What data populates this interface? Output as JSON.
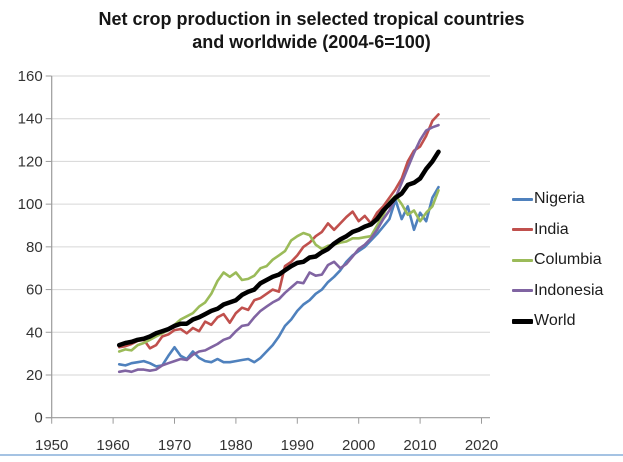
{
  "title": {
    "line1": "Net crop production in selected tropical countries",
    "line2": "and worldwide (2004-6=100)"
  },
  "colors": {
    "background": "#ffffff",
    "title_text": "#161616",
    "axis": "#9b9b9b",
    "gridline": "#d6d6d6",
    "tick_label": "#333333",
    "legend_text": "#1c1c1c",
    "bottom_rule": "#a5c3e3",
    "nigeria": "#4f81bd",
    "india": "#c0504d",
    "columbia": "#9bbb59",
    "indonesia": "#8064a2",
    "world": "#000000"
  },
  "chart_data": {
    "type": "line",
    "title": "Net crop production in selected tropical countries and worldwide (2004-6=100)",
    "xlabel": "",
    "ylabel": "",
    "xlim": [
      1950,
      2021.5
    ],
    "ylim": [
      0,
      160
    ],
    "grid": "horizontal",
    "legend_position": "right",
    "x_ticks": [
      1950,
      1960,
      1970,
      1980,
      1990,
      2000,
      2010,
      2020
    ],
    "y_ticks": [
      0,
      20,
      40,
      60,
      80,
      100,
      120,
      140,
      160
    ],
    "years": [
      1961,
      1962,
      1963,
      1964,
      1965,
      1966,
      1967,
      1968,
      1969,
      1970,
      1971,
      1972,
      1973,
      1974,
      1975,
      1976,
      1977,
      1978,
      1979,
      1980,
      1981,
      1982,
      1983,
      1984,
      1985,
      1986,
      1987,
      1988,
      1989,
      1990,
      1991,
      1992,
      1993,
      1994,
      1995,
      1996,
      1997,
      1998,
      1999,
      2000,
      2001,
      2002,
      2003,
      2004,
      2005,
      2006,
      2007,
      2008,
      2009,
      2010,
      2011,
      2012,
      2013
    ],
    "series": [
      {
        "name": "Nigeria",
        "color": "#4f81bd",
        "width": 2.6,
        "values": [
          25,
          24.5,
          25.5,
          26,
          26.5,
          25.5,
          24,
          24.5,
          29,
          33,
          29,
          27.5,
          31,
          28,
          26.5,
          26,
          27.5,
          26,
          26,
          26.5,
          27,
          27.5,
          26,
          28,
          31,
          34,
          38,
          43,
          46,
          50,
          53,
          55,
          58,
          60,
          63.5,
          66,
          69,
          73,
          76,
          78,
          80,
          83,
          86,
          89.5,
          93,
          102,
          93,
          99,
          88,
          96,
          92,
          103,
          108
        ]
      },
      {
        "name": "India",
        "color": "#c0504d",
        "width": 2.6,
        "values": [
          33,
          33.5,
          34.5,
          36,
          36.5,
          32.5,
          34,
          38,
          39,
          41,
          41.5,
          39.5,
          42,
          40.5,
          45,
          43.5,
          47,
          48.5,
          44.5,
          49,
          51.5,
          50.5,
          55,
          56,
          58,
          60,
          59,
          71,
          73,
          76,
          80,
          82,
          85,
          87,
          91,
          88,
          91,
          94,
          96.5,
          92,
          94.5,
          91,
          96,
          99,
          103,
          107,
          112,
          120,
          125,
          127,
          132,
          139,
          142
        ]
      },
      {
        "name": "Columbia",
        "color": "#9bbb59",
        "width": 2.6,
        "values": [
          31,
          32,
          31.5,
          34,
          35,
          36.5,
          38,
          39.5,
          41,
          43.5,
          46,
          47.5,
          49,
          52,
          54,
          58,
          64,
          68,
          66,
          68,
          64.5,
          65,
          66.5,
          70,
          71,
          74,
          76,
          78,
          83,
          85,
          86.5,
          85.5,
          81,
          79,
          80.5,
          81,
          82,
          82.5,
          84,
          84,
          84.5,
          85,
          90,
          95,
          101,
          104,
          100,
          95,
          97,
          92,
          96,
          99,
          106.5
        ]
      },
      {
        "name": "Indonesia",
        "color": "#8064a2",
        "width": 2.6,
        "values": [
          21.5,
          22,
          21.5,
          22.5,
          22.5,
          22,
          22.5,
          24.5,
          25.5,
          26.5,
          27.5,
          27,
          29.5,
          31,
          31.5,
          33,
          34.5,
          36.5,
          37.5,
          40.5,
          43,
          43.5,
          47,
          50,
          52,
          54,
          55.5,
          58.5,
          61,
          63.5,
          63,
          68,
          66.5,
          67,
          71.5,
          73,
          70,
          72,
          75.5,
          79,
          81,
          84,
          88,
          93,
          97,
          103,
          110,
          117,
          124,
          130,
          134.5,
          136,
          137
        ]
      },
      {
        "name": "World",
        "color": "#000000",
        "width": 4.5,
        "values": [
          34,
          35,
          35.5,
          36.5,
          37,
          38,
          39.5,
          40.5,
          41.5,
          43,
          44,
          44,
          46,
          47,
          48.5,
          50,
          51,
          53,
          54,
          55,
          57.5,
          59,
          60,
          63,
          64.5,
          66,
          67,
          69,
          71,
          72.5,
          73,
          75,
          75.5,
          77.5,
          79,
          81.5,
          83.5,
          85,
          87,
          88,
          89.5,
          90.5,
          93,
          97,
          100,
          103,
          105,
          109,
          110,
          112,
          116.5,
          120,
          124.5
        ]
      }
    ]
  }
}
